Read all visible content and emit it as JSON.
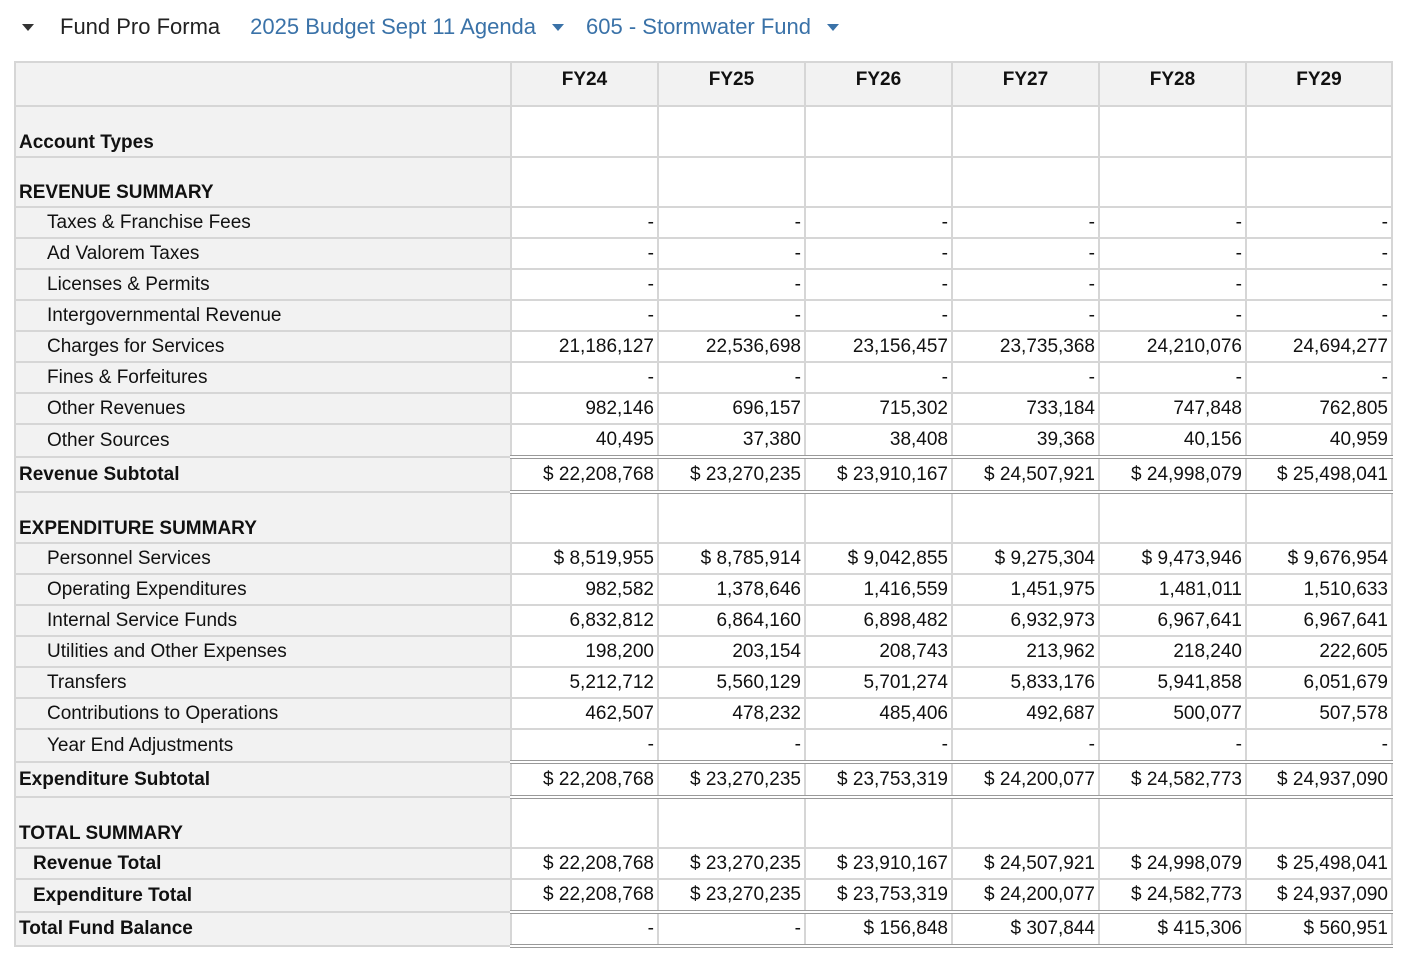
{
  "header": {
    "title": "Fund Pro Forma",
    "budget": "2025 Budget Sept 11 Agenda",
    "fund": "605 - Stormwater Fund"
  },
  "table": {
    "columns": [
      "FY24",
      "FY25",
      "FY26",
      "FY27",
      "FY28",
      "FY29"
    ],
    "rows": [
      {
        "type": "hdr",
        "h": 51,
        "label": "Account Types",
        "values": [
          "",
          "",
          "",
          "",
          "",
          ""
        ]
      },
      {
        "type": "hdr",
        "h": 50,
        "label": "REVENUE SUMMARY",
        "values": [
          "",
          "",
          "",
          "",
          "",
          ""
        ]
      },
      {
        "type": "item",
        "h": 31,
        "label": "Taxes & Franchise Fees",
        "values": [
          "-",
          "-",
          "-",
          "-",
          "-",
          "-"
        ]
      },
      {
        "type": "item",
        "h": 31,
        "label": "Ad Valorem Taxes",
        "values": [
          "-",
          "-",
          "-",
          "-",
          "-",
          "-"
        ]
      },
      {
        "type": "item",
        "h": 31,
        "label": "Licenses & Permits",
        "values": [
          "-",
          "-",
          "-",
          "-",
          "-",
          "-"
        ]
      },
      {
        "type": "item",
        "h": 31,
        "label": "Intergovernmental Revenue",
        "values": [
          "-",
          "-",
          "-",
          "-",
          "-",
          "-"
        ]
      },
      {
        "type": "item",
        "h": 31,
        "label": "Charges for Services",
        "values": [
          "21,186,127",
          "22,536,698",
          "23,156,457",
          "23,735,368",
          "24,210,076",
          "24,694,277"
        ]
      },
      {
        "type": "item",
        "h": 31,
        "label": "Fines & Forfeitures",
        "values": [
          "-",
          "-",
          "-",
          "-",
          "-",
          "-"
        ]
      },
      {
        "type": "item",
        "h": 31,
        "label": "Other Revenues",
        "values": [
          "982,146",
          "696,157",
          "715,302",
          "733,184",
          "747,848",
          "762,805"
        ]
      },
      {
        "type": "item",
        "h": 33,
        "label": "Other Sources",
        "values": [
          "40,495",
          "37,380",
          "38,408",
          "39,368",
          "40,156",
          "40,959"
        ]
      },
      {
        "type": "sub dbl dblb",
        "h": 35,
        "label": "Revenue Subtotal",
        "values": [
          "$ 22,208,768",
          "$ 23,270,235",
          "$ 23,910,167",
          "$ 24,507,921",
          "$ 24,998,079",
          "$ 25,498,041"
        ]
      },
      {
        "type": "hdr",
        "h": 51,
        "label": "EXPENDITURE SUMMARY",
        "values": [
          "",
          "",
          "",
          "",
          "",
          ""
        ]
      },
      {
        "type": "item",
        "h": 31,
        "label": "Personnel Services",
        "values": [
          "$ 8,519,955",
          "$ 8,785,914",
          "$ 9,042,855",
          "$ 9,275,304",
          "$ 9,473,946",
          "$ 9,676,954"
        ]
      },
      {
        "type": "item",
        "h": 31,
        "label": "Operating Expenditures",
        "values": [
          "982,582",
          "1,378,646",
          "1,416,559",
          "1,451,975",
          "1,481,011",
          "1,510,633"
        ]
      },
      {
        "type": "item",
        "h": 31,
        "label": "Internal Service Funds",
        "values": [
          "6,832,812",
          "6,864,160",
          "6,898,482",
          "6,932,973",
          "6,967,641",
          "6,967,641"
        ]
      },
      {
        "type": "item",
        "h": 31,
        "label": "Utilities and Other Expenses",
        "values": [
          "198,200",
          "203,154",
          "208,743",
          "213,962",
          "218,240",
          "222,605"
        ]
      },
      {
        "type": "item",
        "h": 31,
        "label": "Transfers",
        "values": [
          "5,212,712",
          "5,560,129",
          "5,701,274",
          "5,833,176",
          "5,941,858",
          "6,051,679"
        ]
      },
      {
        "type": "item",
        "h": 31,
        "label": "Contributions to Operations",
        "values": [
          "462,507",
          "478,232",
          "485,406",
          "492,687",
          "500,077",
          "507,578"
        ]
      },
      {
        "type": "item",
        "h": 33,
        "label": "Year End Adjustments",
        "values": [
          "-",
          "-",
          "-",
          "-",
          "-",
          "-"
        ]
      },
      {
        "type": "sub dbl dblb",
        "h": 35,
        "label": "Expenditure Subtotal",
        "values": [
          "$ 22,208,768",
          "$ 23,270,235",
          "$ 23,753,319",
          "$ 24,200,077",
          "$ 24,582,773",
          "$ 24,937,090"
        ]
      },
      {
        "type": "hdr",
        "h": 51,
        "label": "TOTAL SUMMARY",
        "values": [
          "",
          "",
          "",
          "",
          "",
          ""
        ]
      },
      {
        "type": "item2",
        "h": 31,
        "label": "Revenue Total",
        "values": [
          "$ 22,208,768",
          "$ 23,270,235",
          "$ 23,910,167",
          "$ 24,507,921",
          "$ 24,998,079",
          "$ 25,498,041"
        ]
      },
      {
        "type": "item2",
        "h": 33,
        "label": "Expenditure Total",
        "values": [
          "$ 22,208,768",
          "$ 23,270,235",
          "$ 23,753,319",
          "$ 24,200,077",
          "$ 24,582,773",
          "$ 24,937,090"
        ]
      },
      {
        "type": "sub dbl dblb",
        "h": 34,
        "label": "Total Fund Balance",
        "values": [
          "-",
          "-",
          "$ 156,848",
          "$ 307,844",
          "$ 415,306",
          "$ 560,951"
        ]
      }
    ]
  }
}
